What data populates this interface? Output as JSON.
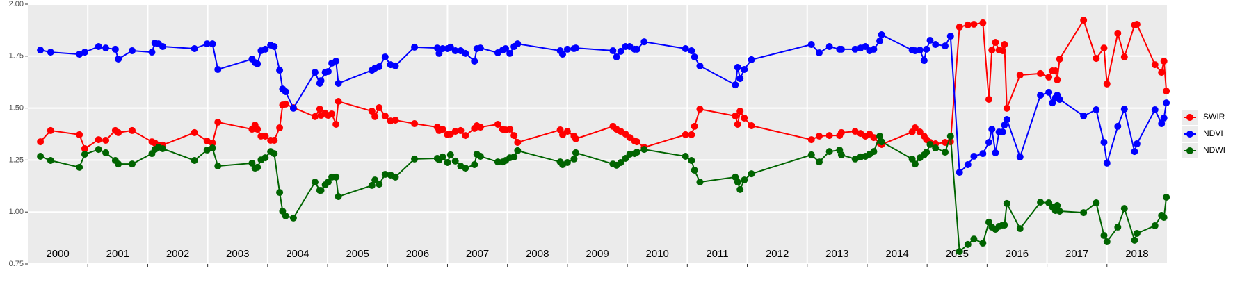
{
  "chart_data": {
    "type": "line",
    "x": [
      2000.21,
      2000.38,
      2000.86,
      2000.95,
      2001.18,
      2001.3,
      2001.46,
      2001.51,
      2001.74,
      2002.07,
      2002.12,
      2002.18,
      2002.25,
      2002.78,
      2002.99,
      2003.08,
      2003.17,
      2003.74,
      2003.79,
      2003.83,
      2003.89,
      2003.96,
      2004.05,
      2004.11,
      2004.2,
      2004.25,
      2004.3,
      2004.43,
      2004.79,
      2004.87,
      2004.89,
      2004.96,
      2005.01,
      2005.07,
      2005.14,
      2005.18,
      2005.74,
      2005.79,
      2005.86,
      2005.96,
      2006.05,
      2006.13,
      2006.45,
      2006.83,
      2006.86,
      2006.92,
      2007.0,
      2007.05,
      2007.13,
      2007.22,
      2007.3,
      2007.45,
      2007.49,
      2007.55,
      2007.84,
      2007.92,
      2007.97,
      2008.04,
      2008.11,
      2008.17,
      2008.88,
      2008.92,
      2009.0,
      2009.11,
      2009.14,
      2009.76,
      2009.82,
      2009.89,
      2009.97,
      2010.04,
      2010.12,
      2010.16,
      2010.28,
      2010.97,
      2011.07,
      2011.12,
      2011.21,
      2011.8,
      2011.84,
      2011.88,
      2011.95,
      2012.07,
      2013.07,
      2013.2,
      2013.37,
      2013.54,
      2013.57,
      2013.8,
      2013.89,
      2013.97,
      2014.04,
      2014.11,
      2014.21,
      2014.24,
      2014.75,
      2014.8,
      2014.88,
      2014.95,
      2014.99,
      2015.05,
      2015.14,
      2015.3,
      2015.39,
      2015.54,
      2015.68,
      2015.78,
      2015.93,
      2016.03,
      2016.08,
      2016.14,
      2016.2,
      2016.26,
      2016.29,
      2016.33,
      2016.55,
      2016.89,
      2017.03,
      2017.09,
      2017.14,
      2017.17,
      2017.21,
      2017.61,
      2017.82,
      2017.95,
      2018.0,
      2018.18,
      2018.29,
      2018.46,
      2018.5,
      2018.8,
      2018.91,
      2018.95,
      2018.99
    ],
    "series": [
      {
        "name": "SWIR",
        "color": "#ff0000",
        "values": [
          1.338,
          1.392,
          1.372,
          1.305,
          1.348,
          1.345,
          1.392,
          1.382,
          1.392,
          1.338,
          1.332,
          1.322,
          1.322,
          1.382,
          1.342,
          1.332,
          1.432,
          1.398,
          1.418,
          1.398,
          1.365,
          1.365,
          1.345,
          1.345,
          1.405,
          1.515,
          1.519,
          1.502,
          1.459,
          1.495,
          1.465,
          1.475,
          1.465,
          1.472,
          1.422,
          1.532,
          1.485,
          1.459,
          1.502,
          1.462,
          1.438,
          1.442,
          1.425,
          1.408,
          1.392,
          1.398,
          1.372,
          1.375,
          1.388,
          1.392,
          1.368,
          1.402,
          1.415,
          1.408,
          1.422,
          1.398,
          1.395,
          1.398,
          1.368,
          1.335,
          1.395,
          1.372,
          1.388,
          1.365,
          1.352,
          1.412,
          1.398,
          1.388,
          1.375,
          1.358,
          1.342,
          1.338,
          1.311,
          1.372,
          1.372,
          1.412,
          1.495,
          1.462,
          1.422,
          1.485,
          1.452,
          1.415,
          1.348,
          1.365,
          1.368,
          1.368,
          1.382,
          1.388,
          1.378,
          1.365,
          1.375,
          1.358,
          1.332,
          1.325,
          1.385,
          1.405,
          1.385,
          1.365,
          1.348,
          1.335,
          1.328,
          1.335,
          1.338,
          1.89,
          1.9,
          1.903,
          1.91,
          1.542,
          1.779,
          1.816,
          1.779,
          1.776,
          1.806,
          1.499,
          1.659,
          1.666,
          1.649,
          1.679,
          1.679,
          1.636,
          1.736,
          1.923,
          1.739,
          1.789,
          1.616,
          1.86,
          1.746,
          1.9,
          1.903,
          1.709,
          1.672,
          1.726,
          1.582
        ]
      },
      {
        "name": "NDVI",
        "color": "#0000ff",
        "values": [
          1.779,
          1.769,
          1.759,
          1.769,
          1.796,
          1.789,
          1.783,
          1.736,
          1.776,
          1.769,
          1.813,
          1.809,
          1.796,
          1.786,
          1.809,
          1.809,
          1.686,
          1.736,
          1.719,
          1.713,
          1.776,
          1.783,
          1.803,
          1.796,
          1.682,
          1.592,
          1.579,
          1.499,
          1.672,
          1.619,
          1.632,
          1.672,
          1.676,
          1.716,
          1.726,
          1.619,
          1.682,
          1.692,
          1.699,
          1.746,
          1.709,
          1.703,
          1.793,
          1.789,
          1.763,
          1.786,
          1.786,
          1.793,
          1.776,
          1.776,
          1.763,
          1.726,
          1.786,
          1.789,
          1.766,
          1.779,
          1.786,
          1.763,
          1.796,
          1.809,
          1.776,
          1.759,
          1.783,
          1.786,
          1.789,
          1.776,
          1.746,
          1.773,
          1.796,
          1.796,
          1.783,
          1.783,
          1.819,
          1.786,
          1.776,
          1.746,
          1.703,
          1.612,
          1.696,
          1.642,
          1.686,
          1.733,
          1.806,
          1.766,
          1.796,
          1.783,
          1.783,
          1.783,
          1.789,
          1.796,
          1.776,
          1.783,
          1.823,
          1.853,
          1.779,
          1.776,
          1.779,
          1.729,
          1.783,
          1.826,
          1.806,
          1.799,
          1.846,
          1.191,
          1.228,
          1.268,
          1.281,
          1.335,
          1.398,
          1.285,
          1.385,
          1.385,
          1.418,
          1.445,
          1.265,
          1.562,
          1.576,
          1.525,
          1.549,
          1.562,
          1.542,
          1.462,
          1.492,
          1.335,
          1.235,
          1.412,
          1.495,
          1.291,
          1.328,
          1.492,
          1.425,
          1.452,
          1.525
        ]
      },
      {
        "name": "NDWI",
        "color": "#006400",
        "values": [
          1.268,
          1.248,
          1.215,
          1.278,
          1.301,
          1.285,
          1.248,
          1.231,
          1.231,
          1.281,
          1.301,
          1.311,
          1.305,
          1.248,
          1.298,
          1.308,
          1.221,
          1.235,
          1.211,
          1.215,
          1.251,
          1.261,
          1.291,
          1.281,
          1.094,
          1.004,
          0.981,
          0.971,
          1.144,
          1.104,
          1.104,
          1.131,
          1.144,
          1.168,
          1.168,
          1.074,
          1.128,
          1.154,
          1.134,
          1.181,
          1.178,
          1.168,
          1.255,
          1.258,
          1.251,
          1.265,
          1.238,
          1.275,
          1.245,
          1.221,
          1.211,
          1.228,
          1.278,
          1.268,
          1.241,
          1.241,
          1.248,
          1.261,
          1.265,
          1.295,
          1.241,
          1.228,
          1.238,
          1.255,
          1.285,
          1.231,
          1.225,
          1.238,
          1.258,
          1.278,
          1.281,
          1.288,
          1.301,
          1.268,
          1.248,
          1.201,
          1.144,
          1.168,
          1.144,
          1.108,
          1.154,
          1.184,
          1.275,
          1.241,
          1.291,
          1.298,
          1.275,
          1.255,
          1.265,
          1.268,
          1.278,
          1.291,
          1.365,
          1.338,
          1.255,
          1.231,
          1.261,
          1.275,
          1.288,
          1.325,
          1.308,
          1.288,
          1.365,
          0.81,
          0.844,
          0.87,
          0.85,
          0.951,
          0.927,
          0.917,
          0.931,
          0.937,
          0.937,
          1.041,
          0.92,
          1.047,
          1.044,
          1.024,
          1.007,
          1.031,
          1.004,
          0.997,
          1.044,
          0.887,
          0.857,
          0.927,
          1.017,
          0.864,
          0.897,
          0.934,
          0.984,
          0.974,
          1.071
        ]
      }
    ],
    "annotations": [
      "2000",
      "2001",
      "2002",
      "2003",
      "2004",
      "2005",
      "2006",
      "2007",
      "2008",
      "2009",
      "2010",
      "2011",
      "2012",
      "2013",
      "2014",
      "2015",
      "2016",
      "2017",
      "2018"
    ],
    "xlim": [
      2000,
      2019
    ],
    "xticks": [
      2001,
      2002,
      2003,
      2004,
      2005,
      2006,
      2007,
      2008,
      2009,
      2010,
      2011,
      2012,
      2013,
      2014,
      2015,
      2016,
      2017,
      2018
    ],
    "ylim": [
      0.75,
      2.0
    ],
    "yticks": [
      0.75,
      {
        "value": 1,
        "label": "1.00"
      },
      1.25,
      {
        "value": 1.5,
        "label": "1.50"
      },
      1.75,
      {
        "value": 2,
        "label": "2.00"
      }
    ],
    "grid": true,
    "legend": "right"
  }
}
